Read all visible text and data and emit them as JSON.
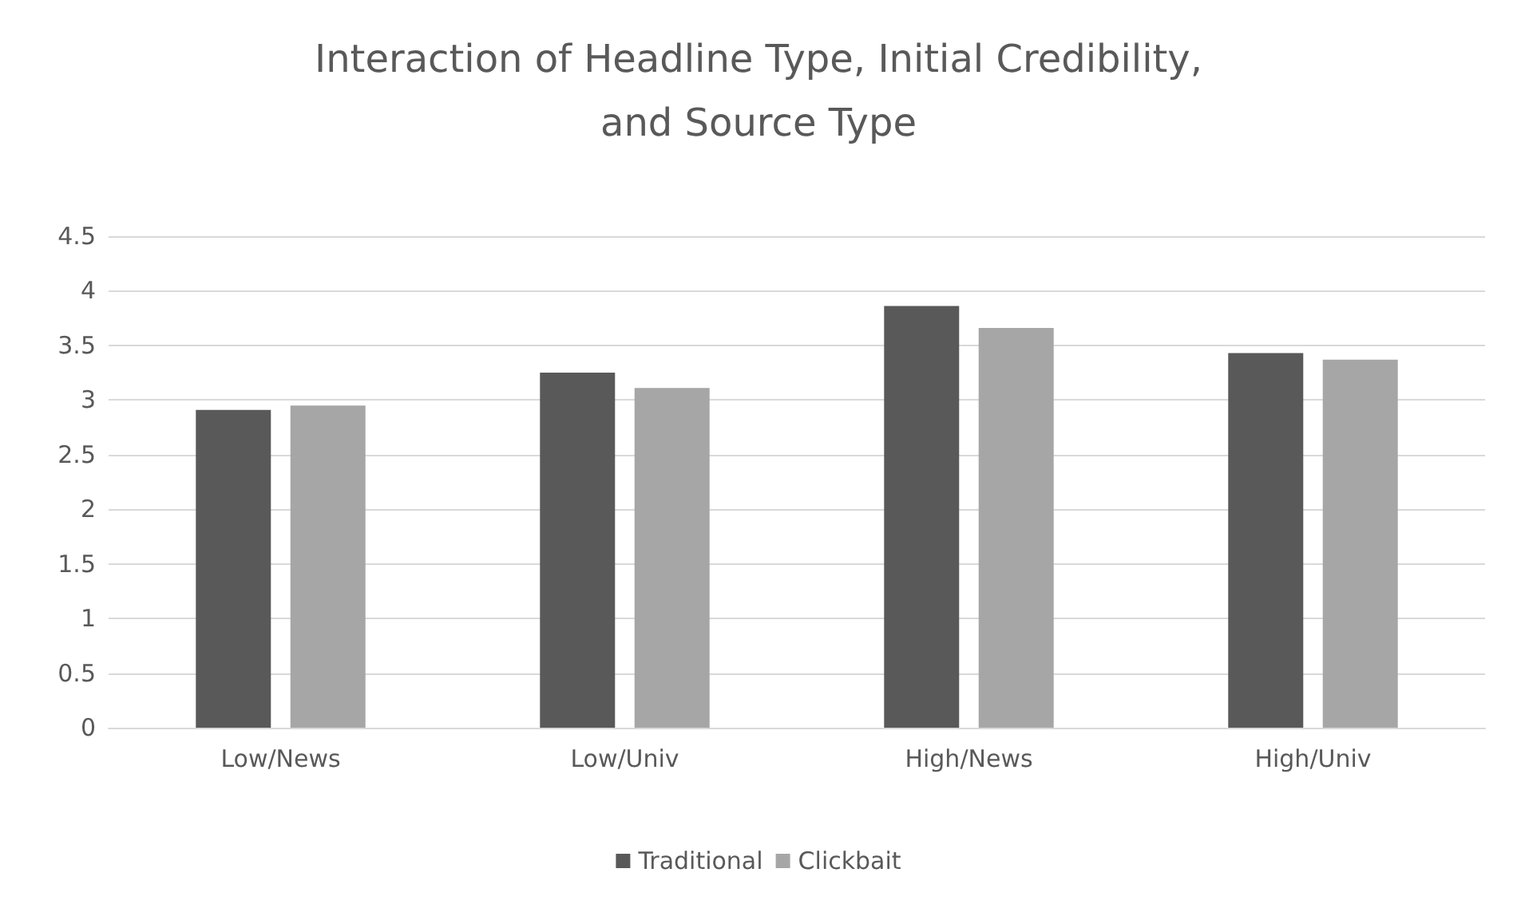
{
  "chart_data": {
    "type": "bar",
    "title": "Interaction of Headline Type, Initial Credibility,\nand Source Type",
    "categories": [
      "Low/News",
      "Low/Univ",
      "High/News",
      "High/Univ"
    ],
    "series": [
      {
        "name": "Traditional",
        "color": "#595959",
        "values": [
          2.91,
          3.25,
          3.86,
          3.43
        ]
      },
      {
        "name": "Clickbait",
        "color": "#a6a6a6",
        "values": [
          2.95,
          3.11,
          3.66,
          3.37
        ]
      }
    ],
    "ylim": [
      0,
      4.5
    ],
    "yticks": [
      0,
      0.5,
      1,
      1.5,
      2,
      2.5,
      3,
      3.5,
      4,
      4.5
    ],
    "grid": "y",
    "legend": "bottom"
  }
}
